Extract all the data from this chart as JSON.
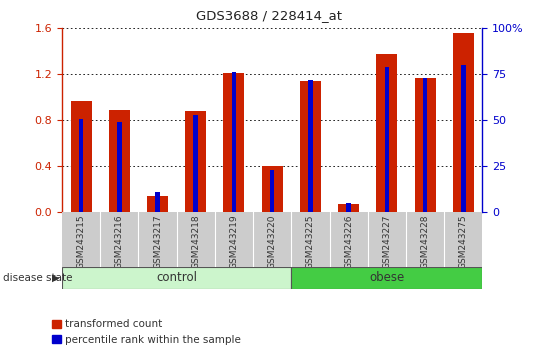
{
  "title": "GDS3688 / 228414_at",
  "categories": [
    "GSM243215",
    "GSM243216",
    "GSM243217",
    "GSM243218",
    "GSM243219",
    "GSM243220",
    "GSM243225",
    "GSM243226",
    "GSM243227",
    "GSM243228",
    "GSM243275"
  ],
  "red_values": [
    0.97,
    0.89,
    0.14,
    0.88,
    1.21,
    0.4,
    1.14,
    0.07,
    1.38,
    1.17,
    1.56
  ],
  "blue_values_pct": [
    51,
    49,
    11,
    53,
    76,
    23,
    72,
    5,
    79,
    73,
    80
  ],
  "control_indices": [
    0,
    1,
    2,
    3,
    4,
    5
  ],
  "obese_indices": [
    6,
    7,
    8,
    9,
    10
  ],
  "control_label": "control",
  "obese_label": "obese",
  "control_color": "#ccf5cc",
  "obese_color": "#44cc44",
  "left_ylim": [
    0,
    1.6
  ],
  "left_yticks": [
    0,
    0.4,
    0.8,
    1.2,
    1.6
  ],
  "right_yticks_pct": [
    0,
    25,
    50,
    75,
    100
  ],
  "red_color": "#cc2200",
  "blue_color": "#0000cc",
  "red_bar_width": 0.55,
  "blue_bar_width": 0.12,
  "disease_state_label": "disease state",
  "legend_red": "transformed count",
  "legend_blue": "percentile rank within the sample",
  "grid_color": "#000000",
  "axis_left_color": "#cc2200",
  "axis_right_color": "#0000cc",
  "ticklabel_bg_color": "#cccccc",
  "ticklabel_fg_color": "#333333"
}
